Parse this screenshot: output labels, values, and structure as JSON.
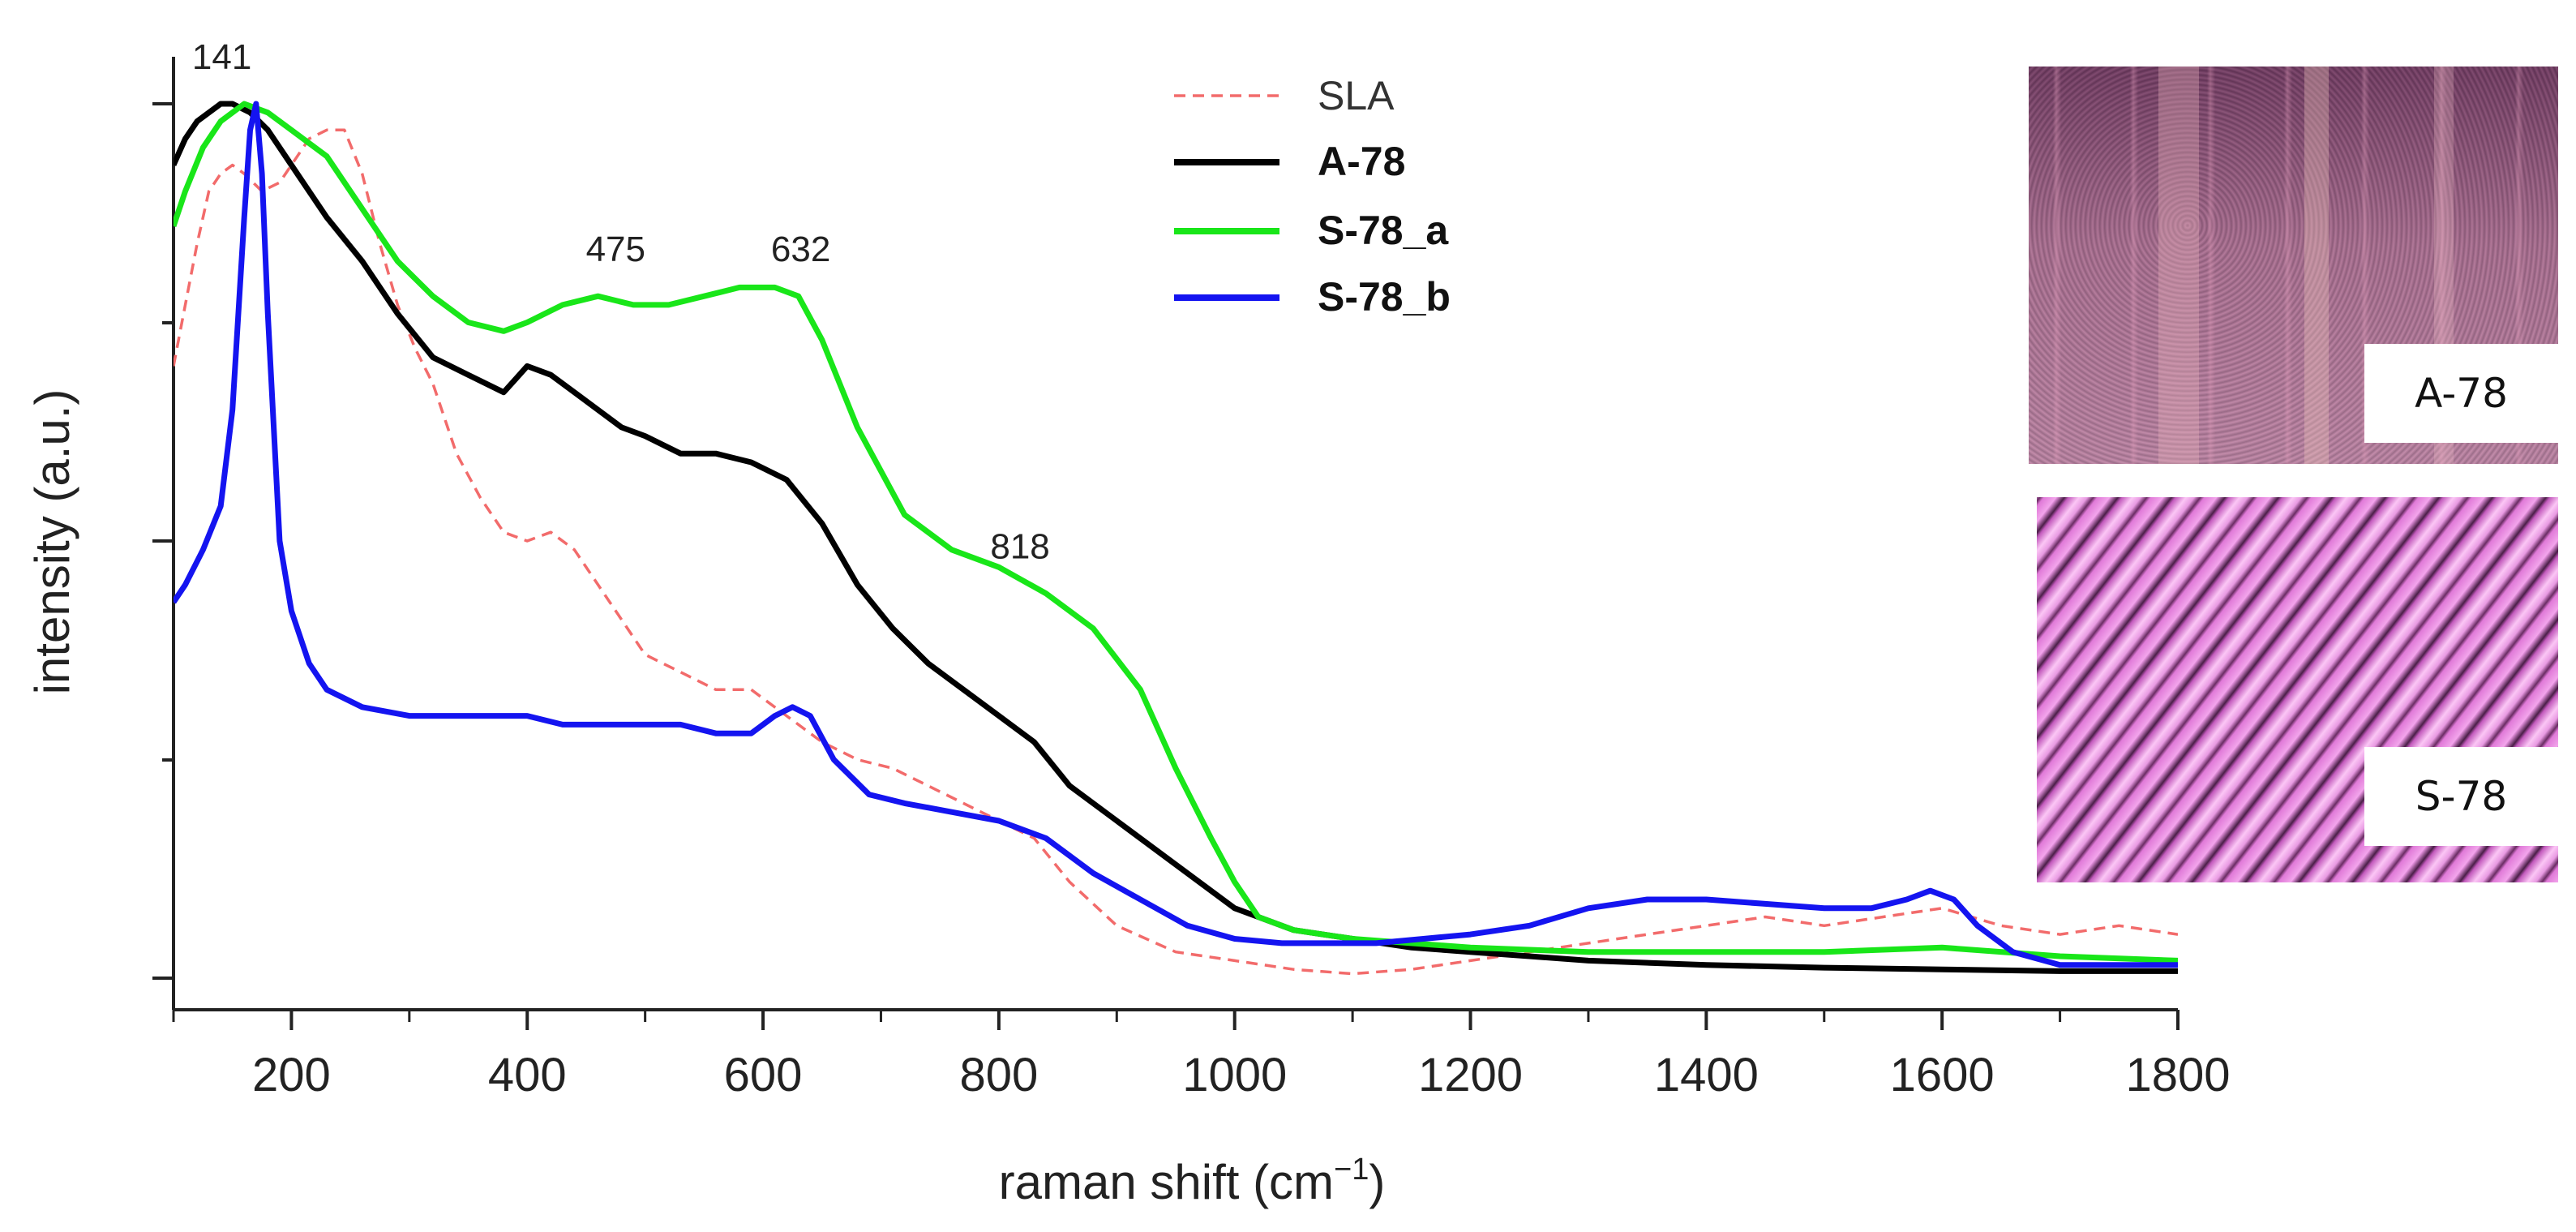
{
  "chart_data": {
    "type": "line",
    "title": "",
    "xlabel": "raman shift (cm",
    "xlabel_sup": "−1",
    "xlabel_close": ")",
    "ylabel": "intensity (a.u.)",
    "xlim": [
      100,
      1800
    ],
    "ylim": [
      0,
      1
    ],
    "xticks": [
      200,
      400,
      600,
      800,
      1000,
      1200,
      1400,
      1600,
      1800
    ],
    "grid": false,
    "legend_position": "top-center",
    "series": [
      {
        "name": "SLA",
        "color": "#f26b6b",
        "style": "dashed",
        "x": [
          100,
          110,
          120,
          130,
          140,
          150,
          160,
          175,
          190,
          200,
          215,
          230,
          245,
          260,
          275,
          290,
          305,
          320,
          340,
          360,
          380,
          400,
          420,
          440,
          460,
          480,
          500,
          530,
          560,
          590,
          620,
          650,
          680,
          710,
          740,
          770,
          800,
          830,
          860,
          900,
          950,
          1000,
          1050,
          1100,
          1150,
          1200,
          1250,
          1300,
          1350,
          1400,
          1450,
          1500,
          1550,
          1600,
          1650,
          1700,
          1750,
          1800
        ],
        "y": [
          0.7,
          0.77,
          0.84,
          0.9,
          0.92,
          0.93,
          0.92,
          0.9,
          0.91,
          0.93,
          0.96,
          0.97,
          0.97,
          0.92,
          0.84,
          0.77,
          0.72,
          0.68,
          0.6,
          0.55,
          0.51,
          0.5,
          0.51,
          0.49,
          0.45,
          0.41,
          0.37,
          0.35,
          0.33,
          0.33,
          0.3,
          0.27,
          0.25,
          0.24,
          0.22,
          0.2,
          0.18,
          0.16,
          0.11,
          0.06,
          0.03,
          0.02,
          0.01,
          0.005,
          0.01,
          0.02,
          0.03,
          0.04,
          0.05,
          0.06,
          0.07,
          0.06,
          0.07,
          0.08,
          0.06,
          0.05,
          0.06,
          0.05
        ]
      },
      {
        "name": "A-78",
        "color": "#000000",
        "style": "solid",
        "x": [
          100,
          110,
          120,
          130,
          140,
          150,
          165,
          180,
          200,
          230,
          260,
          290,
          320,
          350,
          380,
          400,
          420,
          440,
          460,
          480,
          500,
          530,
          560,
          590,
          620,
          650,
          680,
          710,
          740,
          770,
          800,
          830,
          860,
          900,
          950,
          1000,
          1050,
          1100,
          1150,
          1200,
          1250,
          1300,
          1400,
          1500,
          1600,
          1700,
          1800
        ],
        "y": [
          0.93,
          0.96,
          0.98,
          0.99,
          1.0,
          1.0,
          0.99,
          0.97,
          0.93,
          0.87,
          0.82,
          0.76,
          0.71,
          0.69,
          0.67,
          0.7,
          0.69,
          0.67,
          0.65,
          0.63,
          0.62,
          0.6,
          0.6,
          0.59,
          0.57,
          0.52,
          0.45,
          0.4,
          0.36,
          0.33,
          0.3,
          0.27,
          0.22,
          0.18,
          0.13,
          0.08,
          0.055,
          0.045,
          0.035,
          0.03,
          0.025,
          0.02,
          0.015,
          0.012,
          0.01,
          0.008,
          0.008
        ]
      },
      {
        "name": "S-78_a",
        "color": "#19e619",
        "style": "solid",
        "x": [
          100,
          110,
          125,
          140,
          160,
          180,
          200,
          230,
          260,
          290,
          320,
          350,
          380,
          400,
          430,
          460,
          490,
          520,
          550,
          580,
          610,
          630,
          650,
          680,
          720,
          760,
          800,
          840,
          880,
          920,
          950,
          980,
          1000,
          1020,
          1050,
          1100,
          1200,
          1300,
          1400,
          1500,
          1600,
          1700,
          1800
        ],
        "y": [
          0.86,
          0.9,
          0.95,
          0.98,
          1.0,
          0.99,
          0.97,
          0.94,
          0.88,
          0.82,
          0.78,
          0.75,
          0.74,
          0.75,
          0.77,
          0.78,
          0.77,
          0.77,
          0.78,
          0.79,
          0.79,
          0.78,
          0.73,
          0.63,
          0.53,
          0.49,
          0.47,
          0.44,
          0.4,
          0.33,
          0.24,
          0.16,
          0.11,
          0.07,
          0.055,
          0.045,
          0.035,
          0.03,
          0.03,
          0.03,
          0.035,
          0.025,
          0.02
        ]
      },
      {
        "name": "S-78_b",
        "color": "#1414f0",
        "style": "solid",
        "x": [
          100,
          110,
          125,
          140,
          150,
          160,
          165,
          170,
          175,
          180,
          190,
          200,
          215,
          230,
          260,
          300,
          350,
          400,
          430,
          460,
          500,
          530,
          560,
          590,
          610,
          625,
          640,
          660,
          690,
          720,
          760,
          800,
          840,
          880,
          920,
          960,
          1000,
          1040,
          1080,
          1120,
          1160,
          1200,
          1250,
          1300,
          1350,
          1400,
          1450,
          1500,
          1540,
          1570,
          1590,
          1610,
          1630,
          1660,
          1700,
          1750,
          1800
        ],
        "y": [
          0.43,
          0.45,
          0.49,
          0.54,
          0.65,
          0.87,
          0.97,
          1.0,
          0.92,
          0.76,
          0.5,
          0.42,
          0.36,
          0.33,
          0.31,
          0.3,
          0.3,
          0.3,
          0.29,
          0.29,
          0.29,
          0.29,
          0.28,
          0.28,
          0.3,
          0.31,
          0.3,
          0.25,
          0.21,
          0.2,
          0.19,
          0.18,
          0.16,
          0.12,
          0.09,
          0.06,
          0.045,
          0.04,
          0.04,
          0.04,
          0.045,
          0.05,
          0.06,
          0.08,
          0.09,
          0.09,
          0.085,
          0.08,
          0.08,
          0.09,
          0.1,
          0.09,
          0.06,
          0.03,
          0.015,
          0.015,
          0.015
        ]
      }
    ],
    "annotations": [
      {
        "text": "141",
        "x": 141,
        "y": 1.04
      },
      {
        "text": "475",
        "x": 475,
        "y": 0.82
      },
      {
        "text": "632",
        "x": 632,
        "y": 0.82
      },
      {
        "text": "818",
        "x": 818,
        "y": 0.48
      }
    ]
  },
  "insets": [
    {
      "label": "A-78",
      "description": "optical micrograph"
    },
    {
      "label": "S-78",
      "description": "optical micrograph"
    }
  ]
}
